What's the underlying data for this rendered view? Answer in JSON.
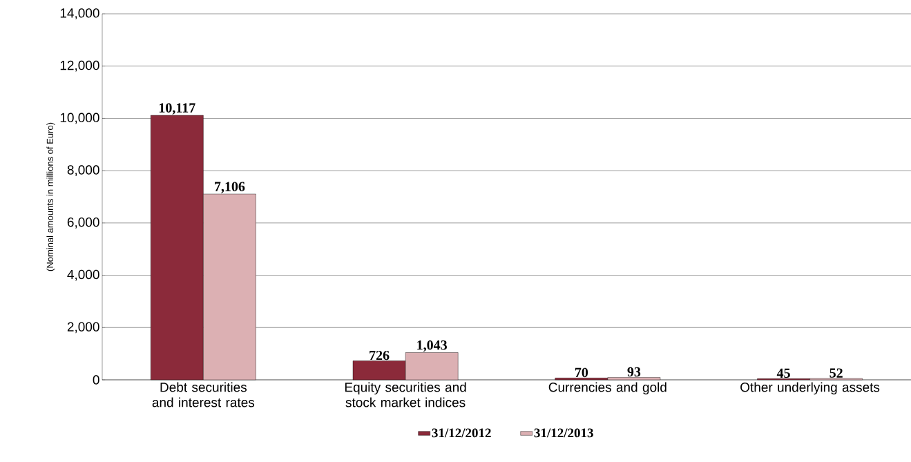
{
  "chart_data": {
    "type": "bar",
    "ylabel": "(Nominal amounts in millions of Euro)",
    "categories": [
      "Debt securities and interest rates",
      "Equity securities and stock market indices",
      "Currencies and gold",
      "Other underlying assets"
    ],
    "series": [
      {
        "name": "31/12/2012",
        "color": "#8b2a3a",
        "values": [
          10117,
          726,
          70,
          45
        ],
        "value_labels": [
          "10,117",
          "726",
          "70",
          "45"
        ]
      },
      {
        "name": "31/12/2013",
        "color": "#dcb0b3",
        "values": [
          7106,
          1043,
          93,
          52
        ],
        "value_labels": [
          "7,106",
          "1,043",
          "93",
          "52"
        ]
      }
    ],
    "ylim": [
      0,
      14000
    ],
    "yticks": [
      0,
      {
        "value": 2000,
        "label": "2,000"
      },
      {
        "value": 4000,
        "label": "4,000"
      },
      {
        "value": 6000,
        "label": "6,000"
      },
      {
        "value": 8000,
        "label": "8,000"
      },
      {
        "value": 10000,
        "label": "10,000"
      },
      {
        "value": 12000,
        "label": "12,000"
      },
      {
        "value": 14000,
        "label": "14,000"
      }
    ],
    "grid": "y",
    "legend": "bottom"
  }
}
